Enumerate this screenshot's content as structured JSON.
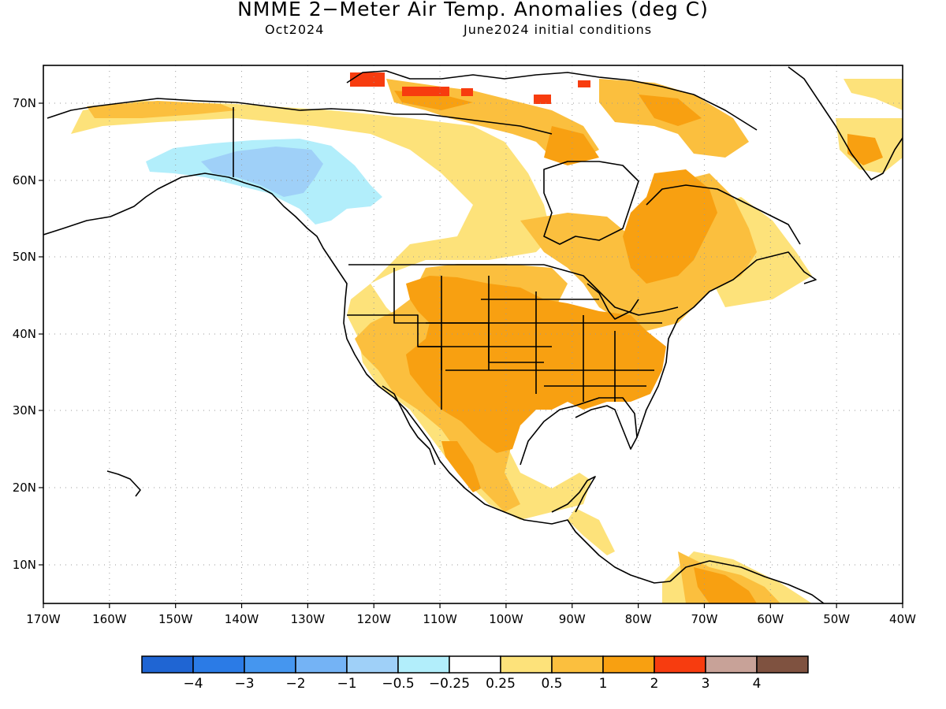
{
  "title": "NMME 2−Meter Air Temp. Anomalies (deg C)",
  "subtitle_left": "Oct2024",
  "subtitle_right": "June2024 initial conditions",
  "axes": {
    "lon_labels": [
      "170W",
      "160W",
      "150W",
      "140W",
      "130W",
      "120W",
      "110W",
      "100W",
      "90W",
      "80W",
      "70W",
      "60W",
      "50W",
      "40W"
    ],
    "lat_labels": [
      "70N",
      "60N",
      "50N",
      "40N",
      "30N",
      "20N",
      "10N"
    ]
  },
  "colorbar": {
    "colors": [
      "#1f65d3",
      "#2b7be6",
      "#4596ef",
      "#74b3f5",
      "#9fd0f8",
      "#b2eefb",
      "#ffffff",
      "#fde27a",
      "#fbbf3e",
      "#f8a011",
      "#f73c0f",
      "#c8a298",
      "#7f5240"
    ],
    "labels": [
      "−4",
      "−3",
      "−2",
      "−1",
      "−0.5",
      "−0.25",
      "0.25",
      "0.5",
      "1",
      "2",
      "3",
      "4"
    ]
  },
  "colors": {
    "coastline": "#000000",
    "grid": "#9a9a9a",
    "anom_025_05": "#fde27a",
    "anom_05_1": "#fbbf3e",
    "anom_1_2": "#f8a011",
    "anom_2_3": "#f73c0f",
    "anom_3_4": "#c8a298",
    "anom_m05_m025": "#b2eefb",
    "anom_m1_m05": "#9fd0f8"
  }
}
